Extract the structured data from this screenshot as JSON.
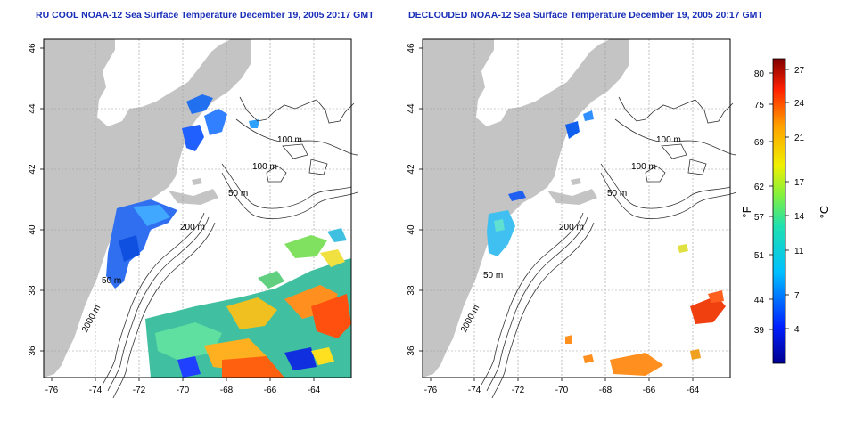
{
  "panels": [
    {
      "title": "RU COOL NOAA-12 Sea Surface Temperature December 19, 2005 20:17 GMT",
      "contour_labels": [
        "100 m",
        "100 m",
        "50 m",
        "200 m",
        "50 m",
        "2000 m"
      ]
    },
    {
      "title": "DECLOUDED NOAA-12 Sea Surface Temperature December 19, 2005 20:17 GMT",
      "contour_labels": [
        "100 m",
        "100 m",
        "50 m",
        "200 m",
        "50 m",
        "2000 m"
      ]
    }
  ],
  "axes": {
    "lat_ticks": [
      "36",
      "38",
      "40",
      "42",
      "44",
      "46"
    ],
    "lon_ticks": [
      "-76",
      "-74",
      "-72",
      "-70",
      "-68",
      "-66",
      "-64"
    ]
  },
  "colorbar": {
    "f_label": "°F",
    "c_label": "°C",
    "f_ticks": [
      "80",
      "75",
      "69",
      "62",
      "57",
      "51",
      "44",
      "39"
    ],
    "c_ticks": [
      "27",
      "24",
      "21",
      "17",
      "14",
      "11",
      "7",
      "4"
    ]
  },
  "colors": {
    "title": "#1a2fb8",
    "land": "#c4c4c4",
    "ocean": "#ffffff"
  }
}
